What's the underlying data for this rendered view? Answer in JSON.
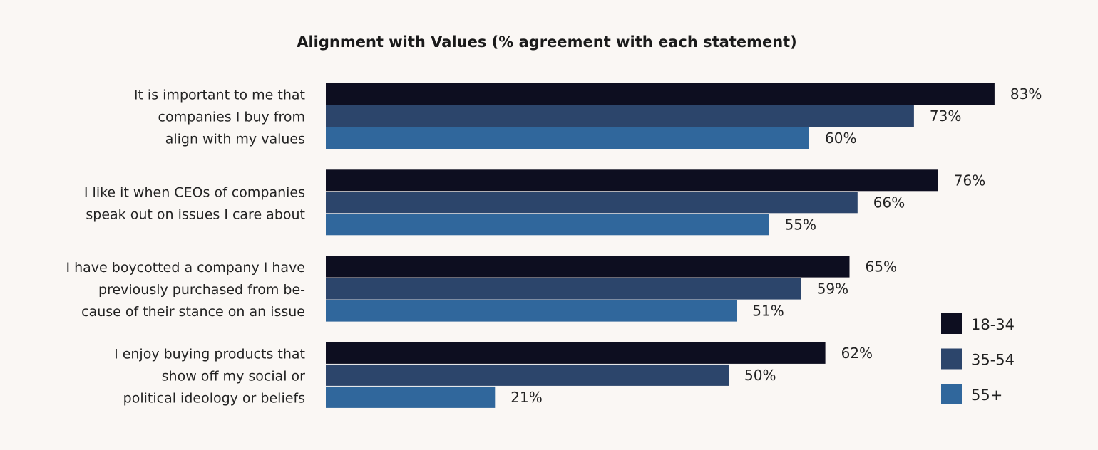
{
  "chart_data": {
    "type": "bar",
    "orientation": "horizontal",
    "title": "Alignment with Values (% agreement with each statement)",
    "xlabel": "",
    "ylabel": "",
    "xlim": [
      0,
      100
    ],
    "grid": false,
    "legend_position": "bottom-right",
    "categories": [
      [
        "It is important to me that",
        "companies I buy from",
        "align with my values"
      ],
      [
        "I like it when CEOs of companies",
        "speak out on issues I care about"
      ],
      [
        "I have boycotted a company I have",
        "previously purchased from be-",
        "cause of their stance on an issue"
      ],
      [
        "I enjoy buying products that",
        "show off my social or",
        "political ideology or beliefs"
      ]
    ],
    "series": [
      {
        "name": "18-34",
        "color": "#0d0e20",
        "values": [
          83,
          76,
          65,
          62
        ]
      },
      {
        "name": "35-54",
        "color": "#2c456b",
        "values": [
          73,
          66,
          59,
          50
        ]
      },
      {
        "name": "55+",
        "color": "#30679c",
        "values": [
          60,
          55,
          51,
          21
        ]
      }
    ],
    "value_suffix": "%"
  }
}
